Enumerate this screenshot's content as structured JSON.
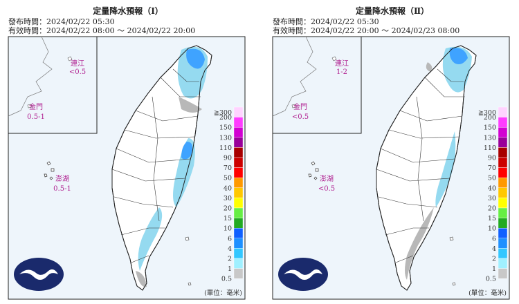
{
  "panels": [
    {
      "title": "定量降水預報（Ⅰ）",
      "issued": "發布時間：2024/02/22 05:30",
      "valid": "有效時間：2024/02/22 08:00 ～ 2024/02/22 20:00",
      "insets": [
        {
          "name": "連江",
          "amount": "<0.5"
        },
        {
          "name": "金門",
          "amount": "0.5-1"
        },
        {
          "name": "澎湖",
          "amount": "0.5-1"
        }
      ]
    },
    {
      "title": "定量降水預報（Ⅱ）",
      "issued": "發布時間：2024/02/22 05:30",
      "valid": "有效時間：2024/02/22 20:00 ～ 2024/02/23 08:00",
      "insets": [
        {
          "name": "連江",
          "amount": "1-2"
        },
        {
          "name": "金門",
          "amount": "<0.5"
        },
        {
          "name": "澎湖",
          "amount": "<0.5"
        }
      ]
    }
  ],
  "legend": {
    "labels": [
      "≧300",
      "200",
      "150",
      "130",
      "110",
      "90",
      "70",
      "50",
      "40",
      "30",
      "20",
      "15",
      "10",
      "6",
      "4",
      "2",
      "1",
      "0.5"
    ],
    "colors": [
      "#ffd3ff",
      "#ff3cff",
      "#d200d2",
      "#990099",
      "#a80000",
      "#cc0000",
      "#ff0000",
      "#ff9900",
      "#ffc800",
      "#ffff00",
      "#66ee44",
      "#22aa22",
      "#1060ff",
      "#1e90ff",
      "#33c7ff",
      "#a0f0ff",
      "#c8c8c8"
    ]
  },
  "unit": "(單位：毫米)"
}
